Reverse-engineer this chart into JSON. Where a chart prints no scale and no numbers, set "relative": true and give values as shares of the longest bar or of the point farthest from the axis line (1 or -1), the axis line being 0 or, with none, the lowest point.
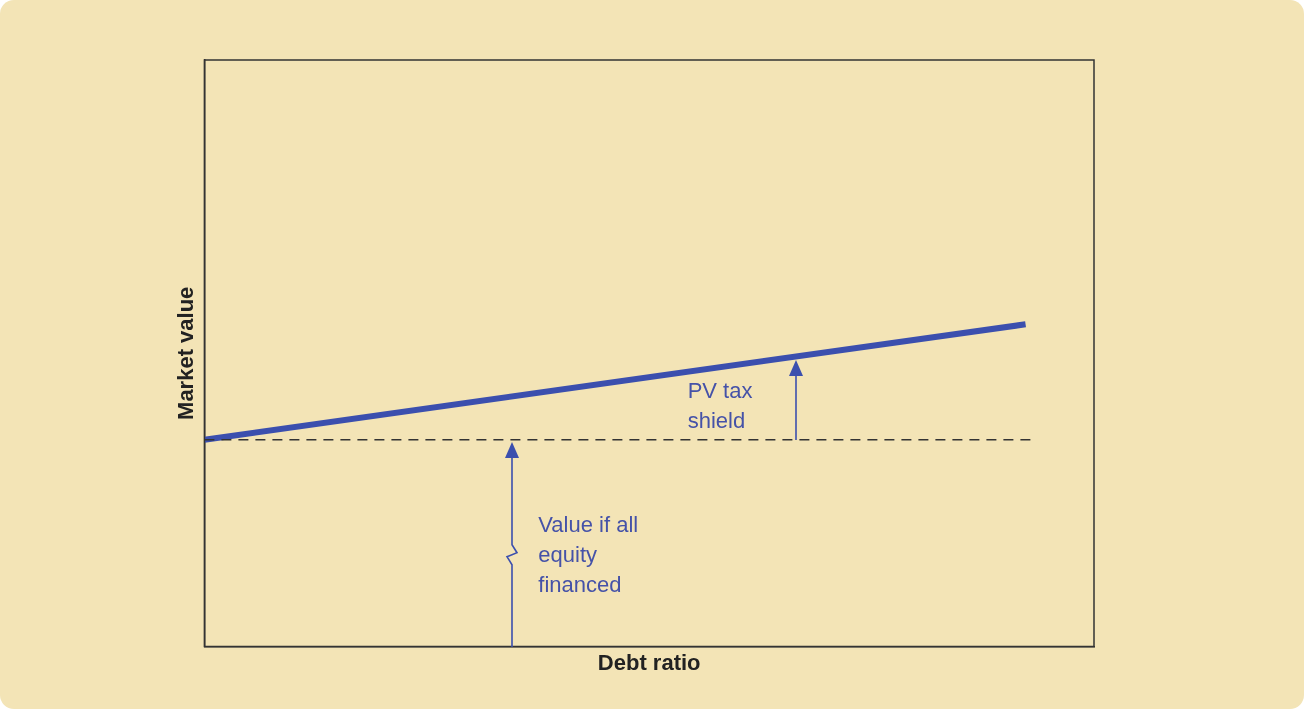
{
  "chart_data": {
    "type": "line",
    "relative": true,
    "xlabel": "Debt ratio",
    "ylabel": "Market value",
    "categories": [
      null,
      null,
      null,
      null,
      null,
      null,
      null,
      null,
      null,
      null,
      null,
      null,
      null,
      null
    ],
    "series": [
      {
        "color": "#3b4fae",
        "values": [
          0.642,
          null,
          null,
          null,
          null,
          null,
          null,
          null,
          null,
          null,
          null,
          null,
          1,
          null
        ]
      }
    ],
    "ref_lines": [
      {
        "axis": "y",
        "value": 0.642,
        "color": "#333333",
        "line_style": "dashed"
      }
    ],
    "annotations": [
      "PV tax shield",
      "Value if all equity financed"
    ],
    "grid": false,
    "legend": false,
    "marker": "none",
    "line_style": "solid",
    "tick_labels": false
  }
}
